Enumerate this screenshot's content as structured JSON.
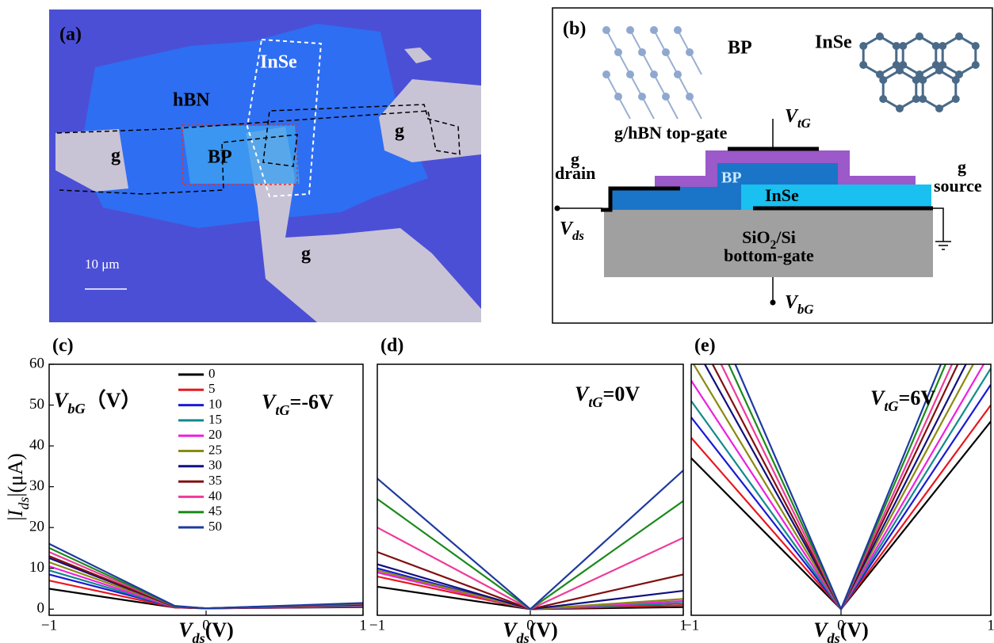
{
  "panel_a": {
    "label": "(a)",
    "hbn": "hBN",
    "inse": "InSe",
    "bp": "BP",
    "g": [
      "g",
      "g",
      "g"
    ],
    "scale": "10 μm"
  },
  "panel_b": {
    "label": "(b)",
    "bp_title": "BP",
    "inse_title": "InSe",
    "top_gate": "g/hBN top-gate",
    "vtg": [
      {
        "text": "V",
        "italic": true
      },
      {
        "text": "tG",
        "sub": true,
        "italic": true
      }
    ],
    "drain_g": "g",
    "drain": "drain",
    "source_g": "g",
    "source": "source",
    "bp": "BP",
    "inse": "InSe",
    "substrate": [
      {
        "text": "SiO"
      },
      {
        "text": "2",
        "sub": true
      },
      {
        "text": "/Si"
      }
    ],
    "bottom_gate": "bottom-gate",
    "vds": [
      {
        "text": "V",
        "italic": true
      },
      {
        "text": "ds",
        "sub": true,
        "italic": true
      }
    ],
    "vbg": [
      {
        "text": "V",
        "italic": true
      },
      {
        "text": "bG",
        "sub": true,
        "italic": true
      }
    ]
  },
  "chart_data": [
    {
      "type": "line",
      "label": "(c)",
      "x": [
        -1,
        -0.2,
        0,
        1
      ],
      "xlim": [
        -1,
        1
      ],
      "xticks": [
        {
          "value": -1,
          "label": "−1"
        },
        0,
        1
      ],
      "ylim": [
        -1.5,
        60
      ],
      "yticks": [
        0,
        10,
        20,
        30,
        40,
        50,
        60
      ],
      "ylabel": [
        {
          "text": "|"
        },
        {
          "text": "I",
          "italic": true
        },
        {
          "text": "ds",
          "sub": true,
          "italic": true
        },
        {
          "text": "|(μA)"
        }
      ],
      "xlabel": [
        {
          "text": "V",
          "italic": true
        },
        {
          "text": "ds",
          "sub": true,
          "italic": true
        },
        {
          "text": "(V)"
        }
      ],
      "annotation": [
        {
          "text": "V",
          "italic": true
        },
        {
          "text": "tG",
          "sub": true,
          "italic": true
        },
        {
          "text": "=-6V"
        }
      ],
      "legend_title": [
        {
          "text": "V",
          "italic": true
        },
        {
          "text": "bG",
          "sub": true,
          "italic": true
        },
        {
          "text": "（V）"
        }
      ],
      "legend": "upper-center",
      "series": [
        {
          "name": "0",
          "color": "#000000",
          "values": [
            5,
            0.4,
            0.2,
            0.5
          ]
        },
        {
          "name": "5",
          "color": "#e8171f",
          "values": [
            7,
            0.4,
            0.2,
            0.6
          ]
        },
        {
          "name": "10",
          "color": "#1a1ad6",
          "values": [
            8.5,
            0.5,
            0.2,
            0.7
          ]
        },
        {
          "name": "15",
          "color": "#138a8a",
          "values": [
            9.5,
            0.5,
            0.2,
            0.8
          ]
        },
        {
          "name": "20",
          "color": "#ee20e0",
          "values": [
            10.5,
            0.5,
            0.2,
            0.9
          ]
        },
        {
          "name": "25",
          "color": "#8a8a10",
          "values": [
            11.5,
            0.6,
            0.2,
            1
          ]
        },
        {
          "name": "30",
          "color": "#101080",
          "values": [
            12.5,
            0.6,
            0.2,
            1.1
          ]
        },
        {
          "name": "35",
          "color": "#801010",
          "values": [
            13,
            0.6,
            0.2,
            1.2
          ]
        },
        {
          "name": "40",
          "color": "#ee3a9a",
          "values": [
            14,
            0.7,
            0.2,
            1.3
          ]
        },
        {
          "name": "45",
          "color": "#1a8a1a",
          "values": [
            15,
            0.7,
            0.2,
            1.4
          ]
        },
        {
          "name": "50",
          "color": "#1e3aa0",
          "values": [
            16,
            0.8,
            0.2,
            1.5
          ]
        }
      ]
    },
    {
      "type": "line",
      "label": "(d)",
      "x": [
        -1,
        0,
        1
      ],
      "xlim": [
        -1,
        1
      ],
      "xticks": [
        {
          "value": -1,
          "label": "−1"
        },
        0,
        1
      ],
      "ylim": [
        -1.5,
        60
      ],
      "xlabel": [
        {
          "text": "V",
          "italic": true
        },
        {
          "text": "ds",
          "sub": true,
          "italic": true
        },
        {
          "text": "(V)"
        }
      ],
      "annotation": [
        {
          "text": "V",
          "italic": true
        },
        {
          "text": "tG",
          "sub": true,
          "italic": true
        },
        {
          "text": "=0V"
        }
      ],
      "series": [
        {
          "color": "#000000",
          "values": [
            5.5,
            0,
            0.5
          ]
        },
        {
          "color": "#e8171f",
          "values": [
            8,
            0,
            1
          ]
        },
        {
          "color": "#1a1ad6",
          "values": [
            10,
            0,
            1.5
          ]
        },
        {
          "color": "#138a8a",
          "values": [
            9,
            0,
            1.5
          ]
        },
        {
          "color": "#ee20e0",
          "values": [
            9,
            0,
            2
          ]
        },
        {
          "color": "#8a8a10",
          "values": [
            9.5,
            0,
            2.5
          ]
        },
        {
          "color": "#101080",
          "values": [
            11,
            0,
            4.5
          ]
        },
        {
          "color": "#801010",
          "values": [
            14,
            0,
            8.5
          ]
        },
        {
          "color": "#ee3a9a",
          "values": [
            20,
            0,
            17.5
          ]
        },
        {
          "color": "#1a8a1a",
          "values": [
            27,
            0,
            26.5
          ]
        },
        {
          "color": "#1e3aa0",
          "values": [
            32,
            0,
            34
          ]
        }
      ]
    },
    {
      "type": "line",
      "label": "(e)",
      "x": [
        -1,
        0,
        1
      ],
      "xlim": [
        -1,
        1
      ],
      "xticks": [
        {
          "value": -1,
          "label": "−1"
        },
        0,
        1
      ],
      "ylim": [
        -1.5,
        60
      ],
      "xlabel": [
        {
          "text": "V",
          "italic": true
        },
        {
          "text": "ds",
          "sub": true,
          "italic": true
        },
        {
          "text": "(V)"
        }
      ],
      "annotation": [
        {
          "text": "V",
          "italic": true
        },
        {
          "text": "tG",
          "sub": true,
          "italic": true
        },
        {
          "text": "=6V"
        }
      ],
      "series": [
        {
          "color": "#000000",
          "values": [
            37,
            0,
            46
          ]
        },
        {
          "color": "#e8171f",
          "values": [
            42,
            0,
            50
          ]
        },
        {
          "color": "#1a1ad6",
          "values": [
            47,
            0,
            55
          ]
        },
        {
          "color": "#138a8a",
          "values": [
            51,
            0,
            59
          ]
        },
        {
          "color": "#ee20e0",
          "values": [
            56,
            0,
            63
          ]
        },
        {
          "color": "#8a8a10",
          "values": [
            61,
            0,
            68
          ]
        },
        {
          "color": "#101080",
          "values": [
            66,
            0,
            72
          ]
        },
        {
          "color": "#801010",
          "values": [
            70,
            0,
            77
          ]
        },
        {
          "color": "#ee3a9a",
          "values": [
            75,
            0,
            81
          ]
        },
        {
          "color": "#1a8a1a",
          "values": [
            80,
            0,
            86
          ]
        },
        {
          "color": "#1e3aa0",
          "values": [
            85,
            0,
            90
          ]
        }
      ]
    }
  ]
}
